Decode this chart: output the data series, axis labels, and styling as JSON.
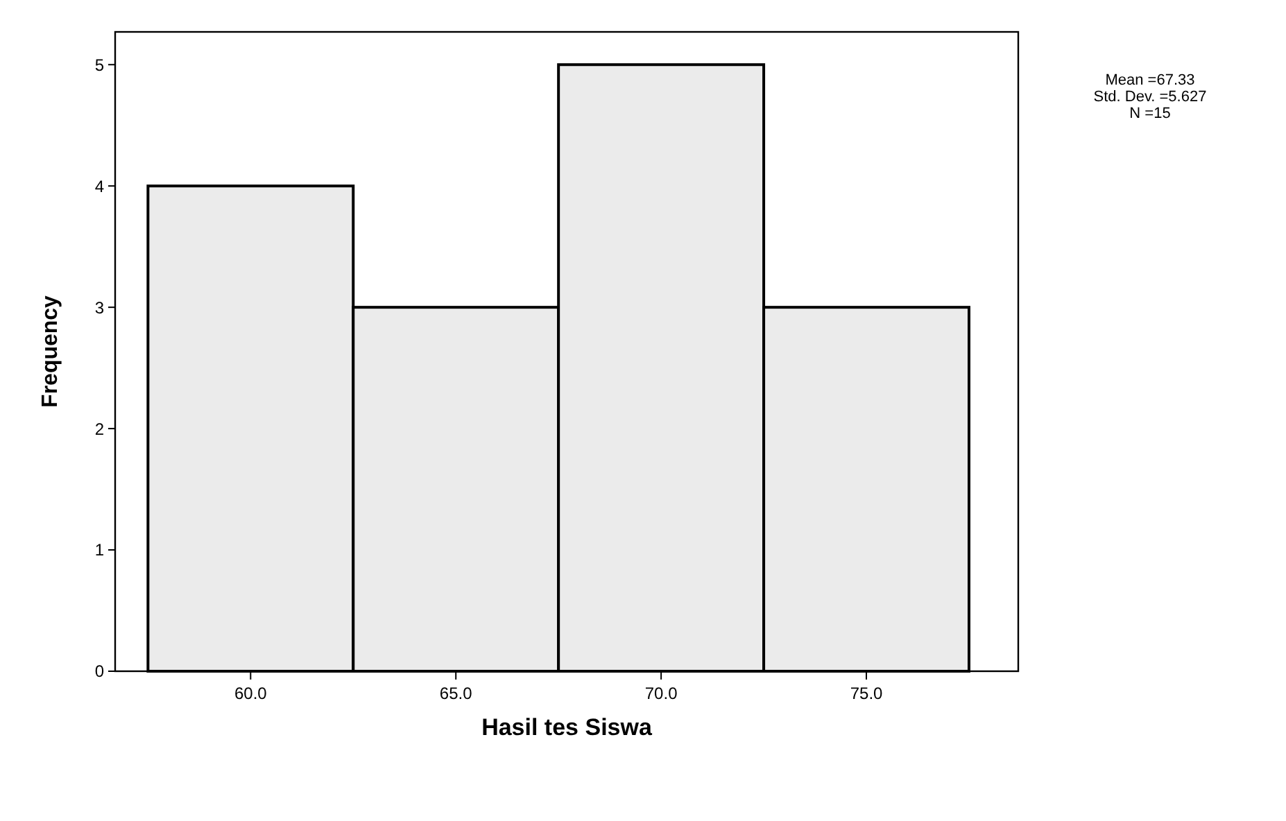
{
  "chart_data": {
    "type": "histogram",
    "xlabel": "Hasil tes Siswa",
    "ylabel": "Frequency",
    "bins": [
      57.5,
      62.5,
      67.5,
      72.5,
      77.5
    ],
    "values": [
      4,
      3,
      5,
      3
    ],
    "color": "#ebebeb",
    "xlim": [
      56.7,
      78.7
    ],
    "ylim": [
      0,
      5.27
    ],
    "xticks": [
      {
        "value": 60,
        "label": "60.0"
      },
      {
        "value": 65,
        "label": "65.0"
      },
      {
        "value": 70,
        "label": "70.0"
      },
      {
        "value": 75,
        "label": "75.0"
      }
    ],
    "yticks": [
      0,
      1,
      2,
      3,
      4,
      5
    ],
    "annotations": [
      "Mean =67.33",
      "Std. Dev. =5.627",
      "N =15"
    ]
  }
}
